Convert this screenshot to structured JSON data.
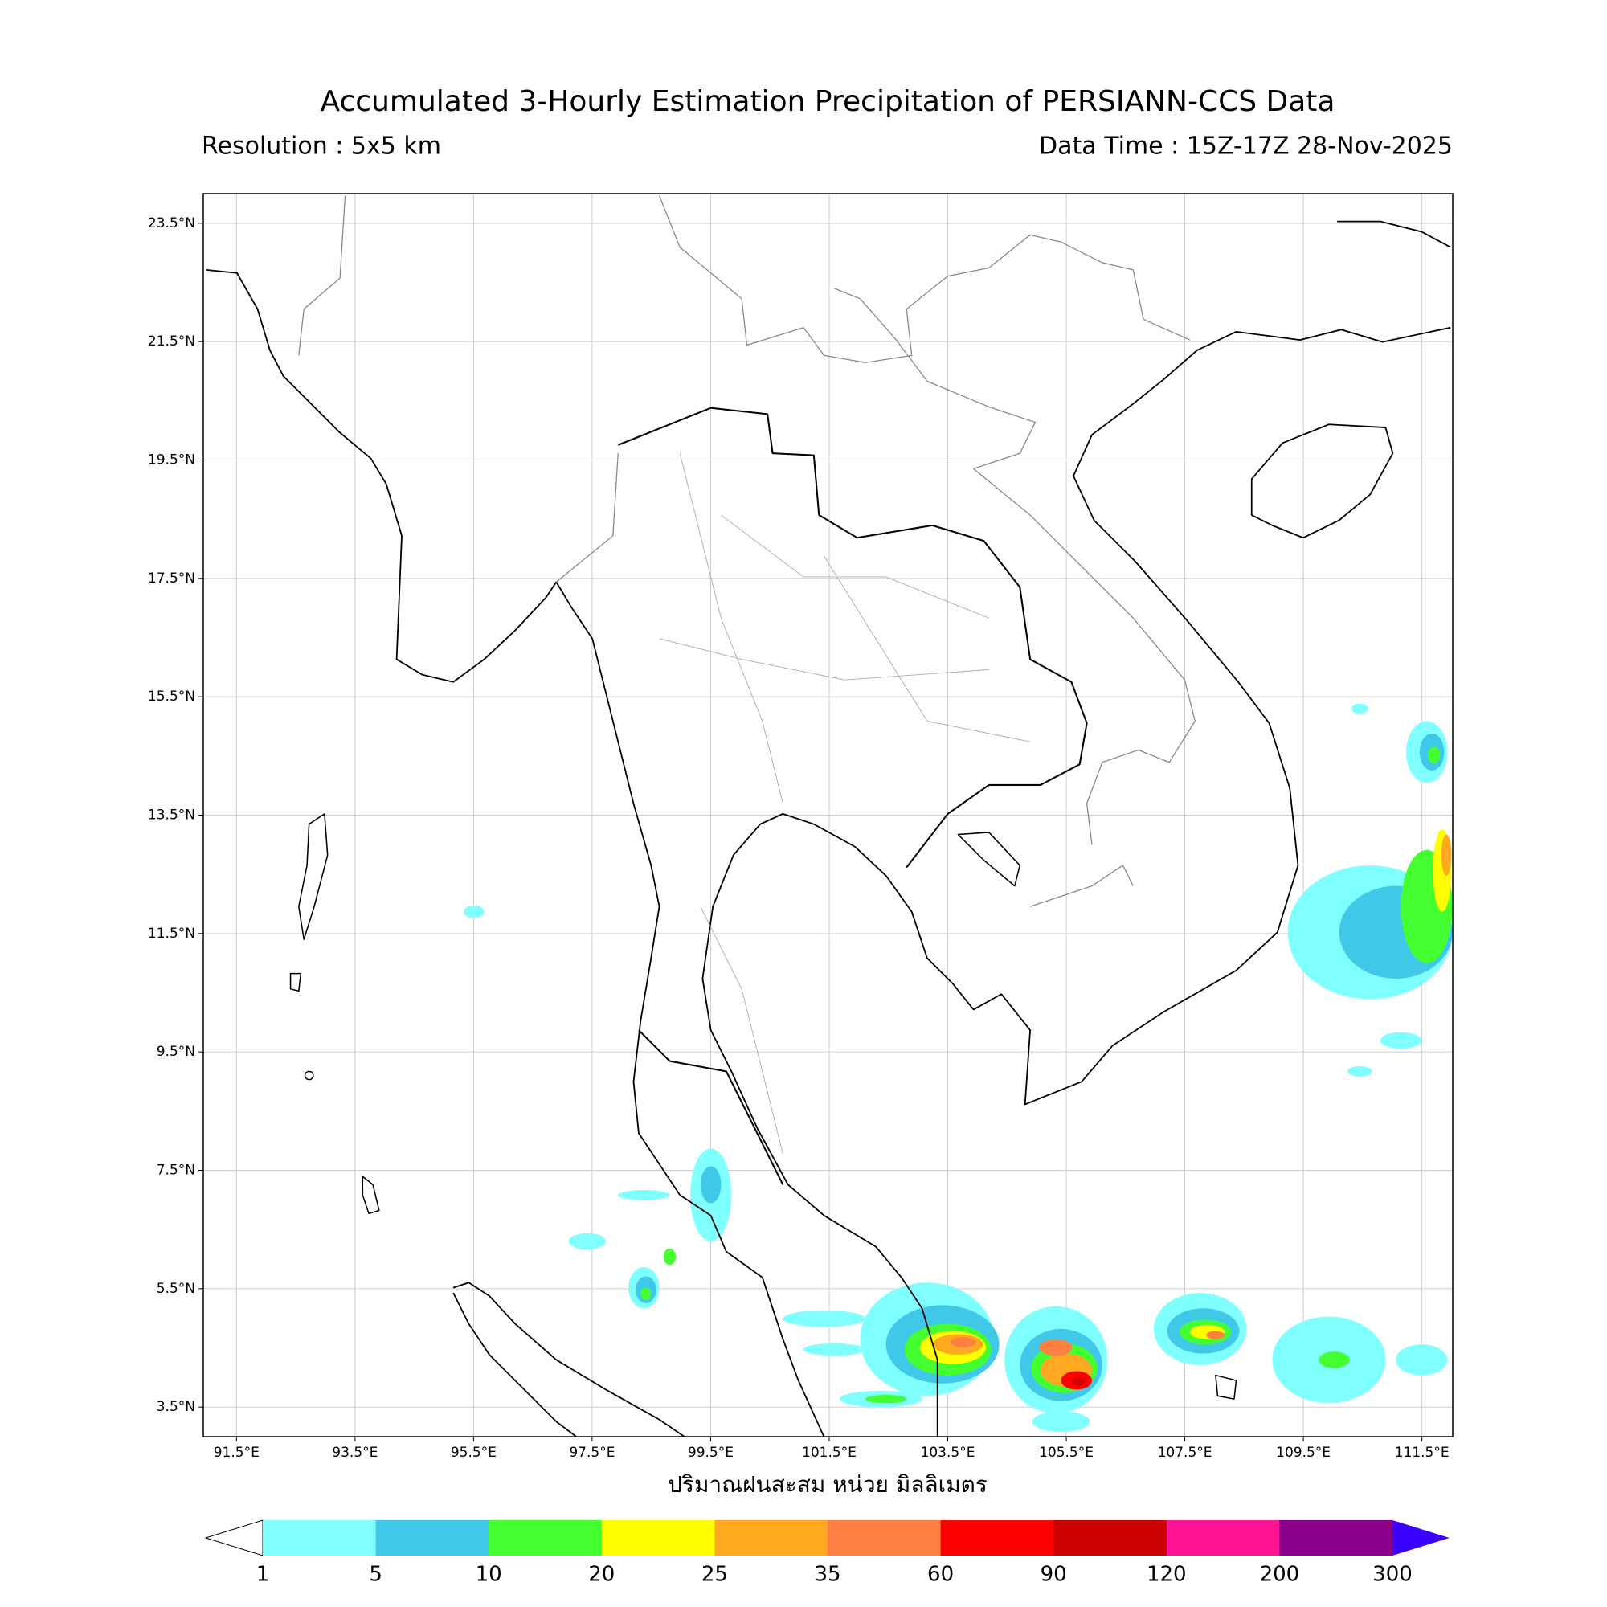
{
  "header": {
    "title": "Accumulated 3-Hourly Estimation Precipitation of PERSIANN-CCS Data",
    "resolution": "Resolution : 5x5 km",
    "data_time": "Data Time : 15Z-17Z 28-Nov-2025"
  },
  "map": {
    "xlim": [
      90.94,
      112.02
    ],
    "ylim": [
      3.0,
      24.0
    ],
    "xticks": [
      {
        "value": 91.5,
        "label": "91.5°E"
      },
      {
        "value": 93.5,
        "label": "93.5°E"
      },
      {
        "value": 95.5,
        "label": "95.5°E"
      },
      {
        "value": 97.5,
        "label": "97.5°E"
      },
      {
        "value": 99.5,
        "label": "99.5°E"
      },
      {
        "value": 101.5,
        "label": "101.5°E"
      },
      {
        "value": 103.5,
        "label": "103.5°E"
      },
      {
        "value": 105.5,
        "label": "105.5°E"
      },
      {
        "value": 107.5,
        "label": "107.5°E"
      },
      {
        "value": 109.5,
        "label": "109.5°E"
      },
      {
        "value": 111.5,
        "label": "111.5°E"
      }
    ],
    "yticks": [
      {
        "value": 3.5,
        "label": "3.5°N"
      },
      {
        "value": 5.5,
        "label": "5.5°N"
      },
      {
        "value": 7.5,
        "label": "7.5°N"
      },
      {
        "value": 9.5,
        "label": "9.5°N"
      },
      {
        "value": 11.5,
        "label": "11.5°N"
      },
      {
        "value": 13.5,
        "label": "13.5°N"
      },
      {
        "value": 15.5,
        "label": "15.5°N"
      },
      {
        "value": 17.5,
        "label": "17.5°N"
      },
      {
        "value": 19.5,
        "label": "19.5°N"
      },
      {
        "value": 21.5,
        "label": "21.5°N"
      },
      {
        "value": 23.5,
        "label": "23.5°N"
      }
    ],
    "grid": true
  },
  "colorbar": {
    "label": "ปริมาณฝนสะสม หน่วย มิลลิเมตร",
    "levels": [
      1,
      5,
      10,
      20,
      25,
      35,
      60,
      90,
      120,
      200,
      300
    ],
    "colors": [
      "#80ffff",
      "#40c8e8",
      "#44ff30",
      "#ffff00",
      "#ffa820",
      "#ff8040",
      "#ff0000",
      "#cc0000",
      "#ff1493",
      "#8b008b"
    ],
    "under_color": "#ffffff",
    "over_color": "#3c00ff"
  }
}
